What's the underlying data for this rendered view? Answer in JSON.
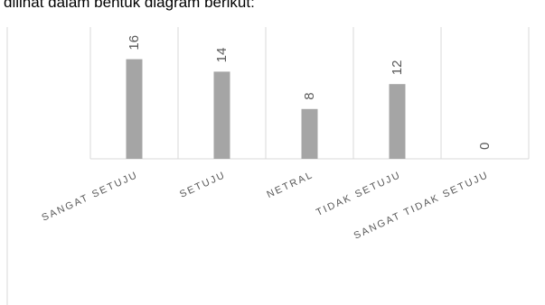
{
  "header": {
    "text": "dilihat dalam bentuk diagram berikut:"
  },
  "chart_data": {
    "type": "bar",
    "categories": [
      "SANGAT SETUJU",
      "SETUJU",
      "NETRAL",
      "TIDAK SETUJU",
      "SANGAT TIDAK SETUJU"
    ],
    "values": [
      16,
      14,
      8,
      12,
      0
    ],
    "title": "",
    "xlabel": "",
    "ylabel": "",
    "ylim": [
      0,
      20
    ],
    "grid": "vertical category dividers",
    "bar_color": "#a5a5a5",
    "label_color": "#595959",
    "axis_color": "#d9d9d9"
  }
}
